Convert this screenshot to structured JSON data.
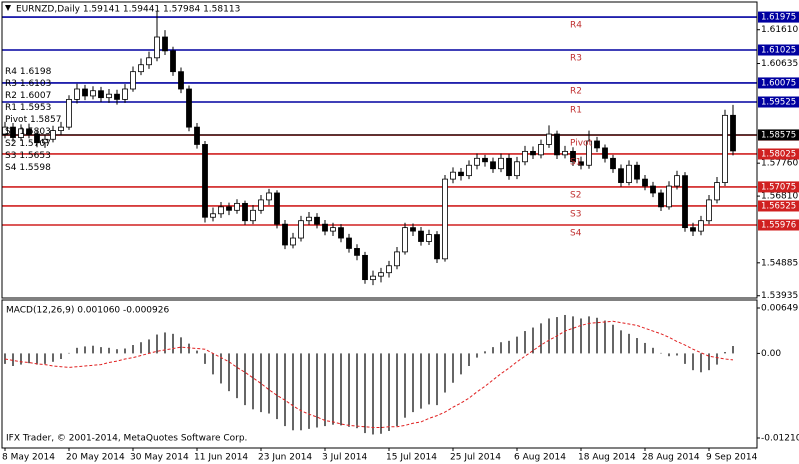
{
  "chart_data": {
    "type": "candlestick",
    "title": "EURNZD,Daily  1.59141 1.59441 1.57984 1.58113",
    "ohlc": [
      [
        1.586,
        1.5895,
        1.5848,
        1.588
      ],
      [
        1.588,
        1.5892,
        1.5838,
        1.585
      ],
      [
        1.585,
        1.5888,
        1.584,
        1.5875
      ],
      [
        1.5875,
        1.589,
        1.5848,
        1.586
      ],
      [
        1.586,
        1.5872,
        1.5822,
        1.5835
      ],
      [
        1.5835,
        1.5858,
        1.582,
        1.5845
      ],
      [
        1.5845,
        1.5884,
        1.5836,
        1.587
      ],
      [
        1.587,
        1.5895,
        1.5858,
        1.588
      ],
      [
        1.588,
        1.5972,
        1.5872,
        1.596
      ],
      [
        1.596,
        1.6005,
        1.5948,
        1.599
      ],
      [
        1.599,
        1.6002,
        1.5958,
        1.597
      ],
      [
        1.597,
        1.5998,
        1.596,
        1.5985
      ],
      [
        1.5985,
        1.5996,
        1.5952,
        1.5965
      ],
      [
        1.5965,
        1.599,
        1.595,
        1.5975
      ],
      [
        1.5975,
        1.5988,
        1.5945,
        1.596
      ],
      [
        1.596,
        1.6004,
        1.595,
        1.599
      ],
      [
        1.599,
        1.6055,
        1.5982,
        1.604
      ],
      [
        1.604,
        1.6078,
        1.603,
        1.606
      ],
      [
        1.606,
        1.6098,
        1.6048,
        1.608
      ],
      [
        1.608,
        1.6215,
        1.607,
        1.614
      ],
      [
        1.614,
        1.616,
        1.6088,
        1.61
      ],
      [
        1.61,
        1.6112,
        1.6028,
        1.604
      ],
      [
        1.604,
        1.6052,
        1.5978,
        1.599
      ],
      [
        1.599,
        1.6,
        1.5868,
        1.588
      ],
      [
        1.588,
        1.5892,
        1.5818,
        1.583
      ],
      [
        1.583,
        1.584,
        1.5605,
        1.562
      ],
      [
        1.562,
        1.5648,
        1.5608,
        1.563
      ],
      [
        1.563,
        1.5664,
        1.5618,
        1.565
      ],
      [
        1.565,
        1.5662,
        1.5626,
        1.564
      ],
      [
        1.564,
        1.5672,
        1.563,
        1.566
      ],
      [
        1.566,
        1.5668,
        1.5598,
        1.561
      ],
      [
        1.561,
        1.5655,
        1.56,
        1.564
      ],
      [
        1.564,
        1.5684,
        1.563,
        1.567
      ],
      [
        1.567,
        1.5702,
        1.5655,
        1.569
      ],
      [
        1.569,
        1.5698,
        1.5588,
        1.56
      ],
      [
        1.56,
        1.5612,
        1.5528,
        1.554
      ],
      [
        1.554,
        1.5575,
        1.553,
        1.556
      ],
      [
        1.556,
        1.5624,
        1.555,
        1.561
      ],
      [
        1.561,
        1.5635,
        1.5598,
        1.562
      ],
      [
        1.562,
        1.5632,
        1.5588,
        1.56
      ],
      [
        1.56,
        1.5612,
        1.5568,
        1.558
      ],
      [
        1.558,
        1.5604,
        1.5566,
        1.559
      ],
      [
        1.559,
        1.56,
        1.5548,
        1.556
      ],
      [
        1.556,
        1.5572,
        1.5518,
        1.553
      ],
      [
        1.553,
        1.5542,
        1.5496,
        1.551
      ],
      [
        1.551,
        1.552,
        1.5428,
        1.544
      ],
      [
        1.544,
        1.5466,
        1.5424,
        1.545
      ],
      [
        1.545,
        1.5474,
        1.5432,
        1.546
      ],
      [
        1.546,
        1.5494,
        1.5446,
        1.548
      ],
      [
        1.548,
        1.5534,
        1.547,
        1.552
      ],
      [
        1.552,
        1.5604,
        1.5512,
        1.559
      ],
      [
        1.559,
        1.5602,
        1.5566,
        1.558
      ],
      [
        1.558,
        1.5592,
        1.5538,
        1.555
      ],
      [
        1.555,
        1.5584,
        1.554,
        1.557
      ],
      [
        1.557,
        1.558,
        1.5488,
        1.55
      ],
      [
        1.55,
        1.5742,
        1.5492,
        1.573
      ],
      [
        1.573,
        1.5764,
        1.5718,
        1.575
      ],
      [
        1.575,
        1.5762,
        1.5726,
        1.574
      ],
      [
        1.574,
        1.5784,
        1.573,
        1.577
      ],
      [
        1.577,
        1.5804,
        1.5758,
        1.579
      ],
      [
        1.579,
        1.58,
        1.5766,
        1.578
      ],
      [
        1.578,
        1.5792,
        1.5748,
        1.576
      ],
      [
        1.576,
        1.5804,
        1.575,
        1.579
      ],
      [
        1.579,
        1.5802,
        1.5728,
        1.574
      ],
      [
        1.574,
        1.5794,
        1.573,
        1.578
      ],
      [
        1.578,
        1.5826,
        1.577,
        1.581
      ],
      [
        1.581,
        1.5824,
        1.5788,
        1.58
      ],
      [
        1.58,
        1.5844,
        1.579,
        1.583
      ],
      [
        1.583,
        1.5885,
        1.582,
        1.586
      ],
      [
        1.586,
        1.587,
        1.5788,
        1.58
      ],
      [
        1.58,
        1.5826,
        1.579,
        1.581
      ],
      [
        1.581,
        1.5822,
        1.5768,
        1.578
      ],
      [
        1.578,
        1.5795,
        1.5758,
        1.577
      ],
      [
        1.577,
        1.587,
        1.576,
        1.584
      ],
      [
        1.584,
        1.5852,
        1.5808,
        1.582
      ],
      [
        1.582,
        1.583,
        1.5778,
        1.579
      ],
      [
        1.579,
        1.58,
        1.5748,
        1.576
      ],
      [
        1.576,
        1.5772,
        1.5708,
        1.572
      ],
      [
        1.572,
        1.5784,
        1.5712,
        1.577
      ],
      [
        1.577,
        1.578,
        1.5718,
        1.573
      ],
      [
        1.573,
        1.5742,
        1.5698,
        1.571
      ],
      [
        1.571,
        1.5722,
        1.5678,
        1.569
      ],
      [
        1.569,
        1.57,
        1.5638,
        1.565
      ],
      [
        1.565,
        1.5724,
        1.5642,
        1.571
      ],
      [
        1.571,
        1.5754,
        1.57,
        1.574
      ],
      [
        1.574,
        1.575,
        1.5578,
        1.559
      ],
      [
        1.559,
        1.5604,
        1.5566,
        1.558
      ],
      [
        1.558,
        1.5624,
        1.5568,
        1.561
      ],
      [
        1.561,
        1.5684,
        1.56,
        1.567
      ],
      [
        1.567,
        1.5736,
        1.566,
        1.572
      ],
      [
        1.572,
        1.593,
        1.571,
        1.5914
      ],
      [
        1.59141,
        1.59441,
        1.57984,
        1.58113
      ]
    ],
    "up_color": "#ffffff",
    "down_color": "#000000",
    "ylim": [
      1.5387,
      1.6241
    ],
    "yticks": [
      {
        "value": 1.6161,
        "label": "1.61610"
      },
      1.60635,
      {
        "value": 1.5776,
        "label": "1.57760"
      },
      {
        "value": 1.5681,
        "label": "1.56810"
      },
      1.54885,
      1.53935
    ],
    "xticks": [
      {
        "value": 0,
        "label": "8 May 2014"
      },
      {
        "value": 8,
        "label": "20 May 2014"
      },
      {
        "value": 16,
        "label": "30 May 2014"
      },
      {
        "value": 24,
        "label": "11 Jun 2014"
      },
      {
        "value": 32,
        "label": "23 Jun 2014"
      },
      {
        "value": 40,
        "label": "3 Jul 2014"
      },
      {
        "value": 48,
        "label": "15 Jul 2014"
      },
      {
        "value": 56,
        "label": "25 Jul 2014"
      },
      {
        "value": 64,
        "label": "6 Aug 2014"
      },
      {
        "value": 72,
        "label": "18 Aug 2014"
      },
      {
        "value": 80,
        "label": "28 Aug 2014"
      },
      {
        "value": 88,
        "label": "9 Sep 2014"
      }
    ],
    "levels": [
      {
        "name": "R4",
        "value": 1.61975,
        "short": "1.6198",
        "color": "#0000a0"
      },
      {
        "name": "R3",
        "value": 1.61025,
        "short": "1.6103",
        "color": "#0000a0"
      },
      {
        "name": "R2",
        "value": 1.60075,
        "short": "1.6007",
        "color": "#0000a0"
      },
      {
        "name": "R1",
        "value": 1.59525,
        "short": "1.5953",
        "color": "#0000a0"
      },
      {
        "name": "Pivot",
        "value": 1.5857,
        "short": "1.5857",
        "color": "#d02020"
      },
      {
        "name": "S1",
        "value": 1.58025,
        "short": "1.5803",
        "color": "#d02020"
      },
      {
        "name": "S2",
        "value": 1.57075,
        "short": "1.5707",
        "color": "#d02020"
      },
      {
        "name": "S3",
        "value": 1.56525,
        "short": "1.5653",
        "color": "#d02020"
      },
      {
        "name": "S4",
        "value": 1.55976,
        "short": "1.5598",
        "color": "#d02020"
      }
    ],
    "current_price": 1.58575,
    "indicator": {
      "type": "macd",
      "title": "MACD(12,26,9) 0.001060 -0.000926",
      "main": [
        -0.0015,
        -0.0018,
        -0.0016,
        -0.0014,
        -0.0016,
        -0.0015,
        -0.0012,
        -0.0008,
        0,
        0.0008,
        0.001,
        0.0011,
        0.0009,
        0.0008,
        0.0006,
        0.0007,
        0.0012,
        0.0016,
        0.002,
        0.0027,
        0.003,
        0.0028,
        0.0023,
        0.0014,
        0.0004,
        -0.0015,
        -0.003,
        -0.0043,
        -0.0054,
        -0.0064,
        -0.0074,
        -0.008,
        -0.0084,
        -0.0086,
        -0.0094,
        -0.0104,
        -0.011,
        -0.011,
        -0.0108,
        -0.0106,
        -0.0104,
        -0.0102,
        -0.0103,
        -0.0105,
        -0.0107,
        -0.0114,
        -0.0116,
        -0.0115,
        -0.0111,
        -0.0104,
        -0.0092,
        -0.0084,
        -0.0079,
        -0.0073,
        -0.0074,
        -0.0056,
        -0.0042,
        -0.003,
        -0.0018,
        -0.0006,
        0.0003,
        0.0009,
        0.0016,
        0.0018,
        0.0024,
        0.0032,
        0.0037,
        0.0043,
        0.005,
        0.0052,
        0.0055,
        0.0053,
        0.005,
        0.0053,
        0.0051,
        0.0047,
        0.0041,
        0.0033,
        0.0028,
        0.0022,
        0.0015,
        0.0008,
        0,
        -0.0004,
        -0.0003,
        -0.0015,
        -0.0024,
        -0.0027,
        -0.0024,
        -0.0016,
        0.0002,
        0.00106
      ],
      "signal": [
        -0.0008,
        -0.001,
        -0.0012,
        -0.0013,
        -0.0015,
        -0.0016,
        -0.0018,
        -0.0019,
        -0.002,
        -0.0019,
        -0.0018,
        -0.0017,
        -0.0016,
        -0.0013,
        -0.0011,
        -0.0008,
        -0.0006,
        -0.0003,
        0,
        0.0003,
        0.0005,
        0.0007,
        0.0009,
        0.0008,
        0.0007,
        0.0006,
        0,
        -0.0006,
        -0.0012,
        -0.002,
        -0.0027,
        -0.0035,
        -0.0043,
        -0.0052,
        -0.006,
        -0.0067,
        -0.0075,
        -0.0082,
        -0.0087,
        -0.0091,
        -0.0096,
        -0.0098,
        -0.0101,
        -0.0103,
        -0.0104,
        -0.0105,
        -0.0106,
        -0.0106,
        -0.0105,
        -0.0105,
        -0.0103,
        -0.01,
        -0.0098,
        -0.0093,
        -0.0089,
        -0.0084,
        -0.0077,
        -0.0071,
        -0.0064,
        -0.0055,
        -0.0047,
        -0.0038,
        -0.0029,
        -0.0021,
        -0.0012,
        -0.0004,
        0.0004,
        0.0012,
        0.0019,
        0.0025,
        0.0032,
        0.0036,
        0.004,
        0.0043,
        0.0044,
        0.0045,
        0.0046,
        0.0044,
        0.0042,
        0.004,
        0.0036,
        0.0032,
        0.0028,
        0.0023,
        0.0017,
        0.0012,
        0.0006,
        0.0001,
        -0.0004,
        -0.0006,
        -0.0008,
        -0.000926
      ],
      "main_color": "#000000",
      "signal_color": "#e02020",
      "ylim": [
        -0.012104,
        0.006497
      ],
      "yticks": [
        0.006497,
        {
          "value": 0,
          "label": "0.00"
        },
        -0.012104
      ]
    },
    "footer": "IFX Trader, © 2001-2014, MetaQuotes Software Corp."
  }
}
